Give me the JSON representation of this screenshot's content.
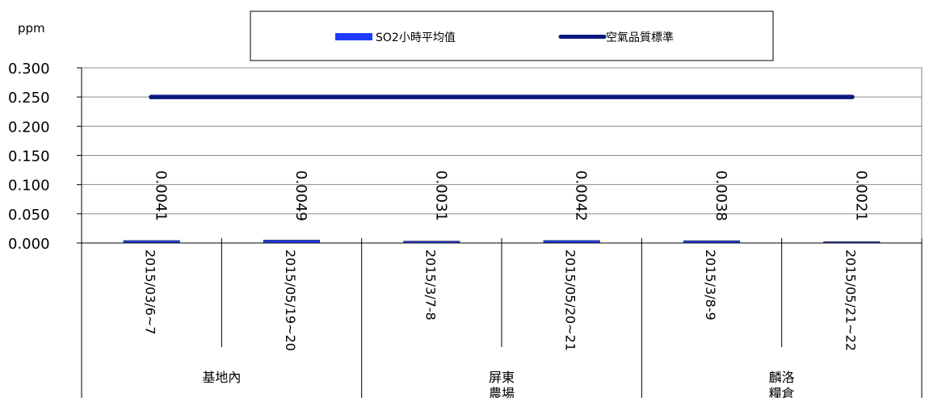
{
  "chart_data": {
    "type": "bar",
    "yunit_label": "ppm",
    "ylim": [
      0,
      0.3
    ],
    "ytick_step": 0.05,
    "yticks": [
      "0.000",
      "0.050",
      "0.100",
      "0.150",
      "0.200",
      "0.250",
      "0.300"
    ],
    "grid": true,
    "legend_placement": "top-center",
    "categories": [
      "2015/03/6~7",
      "2015/05/19~20",
      "2015/3/7-8",
      "2015/05/20~21",
      "2015/3/8-9",
      "2015/05/21~22"
    ],
    "groups": [
      {
        "label": "基地內",
        "span": [
          0,
          1
        ]
      },
      {
        "label": "屏東農場",
        "span": [
          2,
          3
        ]
      },
      {
        "label": "麟洛糧倉",
        "span": [
          4,
          5
        ]
      }
    ],
    "series": [
      {
        "name": "SO2小時平均值",
        "type": "bar",
        "color": "#1e3cff",
        "values": [
          0.0041,
          0.0049,
          0.0031,
          0.0042,
          0.0038,
          0.0021
        ],
        "data_labels": [
          "0.0041",
          "0.0049",
          "0.0031",
          "0.0042",
          "0.0038",
          "0.0021"
        ]
      },
      {
        "name": "空氣品質標準",
        "type": "line",
        "color": "#0a1a80",
        "values": [
          0.25,
          0.25,
          0.25,
          0.25,
          0.25,
          0.25
        ]
      }
    ]
  }
}
